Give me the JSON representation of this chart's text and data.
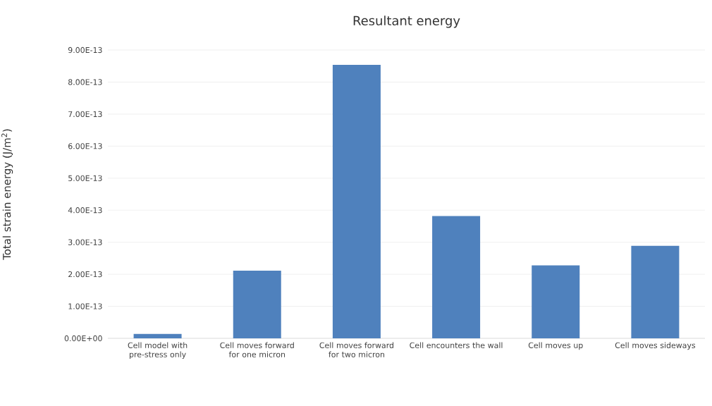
{
  "chart_data": {
    "type": "bar",
    "title": "Resultant energy",
    "ylabel": "Total strain energy (J/m$^{2}$)",
    "categories": [
      "Cell model with pre-stress only",
      "Cell moves forward for one micron",
      "Cell moves forward for two micron",
      "Cell encounters the wall",
      "Cell moves up",
      "Cell moves sideways"
    ],
    "values": [
      1.4e-14,
      2.11e-13,
      8.54e-13,
      3.82e-13,
      2.28e-13,
      2.89e-13
    ],
    "color": "#4f81bd",
    "ylim": [
      0,
      9e-13
    ],
    "yticks": [
      {
        "value": 0,
        "label": "0.00E+00"
      },
      {
        "value": 1e-13,
        "label": "1.00E-13"
      },
      {
        "value": 2e-13,
        "label": "2.00E-13"
      },
      {
        "value": 3e-13,
        "label": "3.00E-13"
      },
      {
        "value": 4e-13,
        "label": "4.00E-13"
      },
      {
        "value": 5e-13,
        "label": "5.00E-13"
      },
      {
        "value": 6e-13,
        "label": "6.00E-13"
      },
      {
        "value": 7e-13,
        "label": "7.00E-13"
      },
      {
        "value": 8e-13,
        "label": "8.00E-13"
      },
      {
        "value": 9e-13,
        "label": "9.00E-13"
      }
    ],
    "grid": "y"
  }
}
